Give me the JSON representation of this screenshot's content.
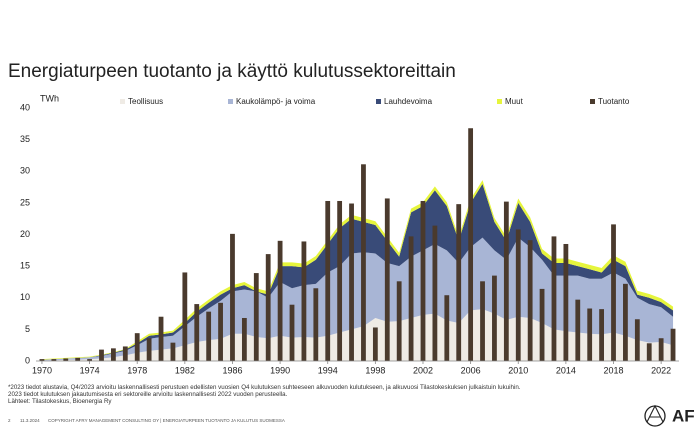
{
  "chart_data": {
    "type": "area",
    "title": "Energiaturpeen tuotanto ja käyttö kulutussektoreittain",
    "ylabel": "TWh",
    "x": [
      1970,
      1971,
      1972,
      1973,
      1974,
      1975,
      1976,
      1977,
      1978,
      1979,
      1980,
      1981,
      1982,
      1983,
      1984,
      1985,
      1986,
      1987,
      1988,
      1989,
      1990,
      1991,
      1992,
      1993,
      1994,
      1995,
      1996,
      1997,
      1998,
      1999,
      2000,
      2001,
      2002,
      2003,
      2004,
      2005,
      2006,
      2007,
      2008,
      2009,
      2010,
      2011,
      2012,
      2013,
      2014,
      2015,
      2016,
      2017,
      2018,
      2019,
      2020,
      2021,
      2022,
      2023
    ],
    "xlim": [
      1969.5,
      2023.5
    ],
    "xticks": [
      1970,
      1974,
      1978,
      1982,
      1986,
      1990,
      1994,
      1998,
      2002,
      2006,
      2010,
      2014,
      2018,
      2022
    ],
    "ylim": [
      0,
      40
    ],
    "yticks": [
      0,
      5,
      10,
      15,
      20,
      25,
      30,
      35,
      40
    ],
    "series": [
      {
        "name": "Teollisuus",
        "color": "#efebe5",
        "type": "area",
        "values": [
          0.1,
          0.1,
          0.2,
          0.2,
          0.3,
          0.4,
          0.6,
          0.9,
          1.3,
          1.6,
          1.8,
          2.0,
          2.5,
          3.0,
          3.3,
          3.5,
          4.3,
          4.3,
          3.8,
          3.6,
          4.0,
          3.7,
          3.8,
          3.7,
          4.0,
          4.5,
          5.0,
          5.5,
          6.8,
          6.2,
          6.3,
          6.8,
          7.3,
          7.5,
          6.4,
          6.0,
          8.0,
          8.2,
          7.5,
          6.5,
          7.0,
          6.8,
          6.0,
          5.0,
          4.7,
          4.5,
          4.3,
          4.2,
          4.5,
          4.0,
          3.3,
          2.9,
          3.0,
          2.5
        ]
      },
      {
        "name": "Kaukolämpö- ja voima",
        "color": "#a8b5d5",
        "type": "area",
        "values": [
          0.1,
          0.2,
          0.2,
          0.3,
          0.3,
          0.4,
          0.6,
          0.7,
          1.2,
          1.9,
          2.0,
          2.0,
          3.0,
          4.0,
          5.0,
          6.0,
          6.7,
          7.0,
          7.2,
          6.4,
          8.5,
          7.8,
          8.2,
          8.5,
          10.0,
          10.5,
          12.0,
          11.7,
          10.2,
          9.3,
          8.7,
          9.7,
          10.2,
          11.0,
          11.1,
          9.5,
          10.0,
          11.3,
          10.0,
          9.5,
          12.5,
          11.2,
          10.0,
          8.5,
          8.8,
          9.0,
          8.7,
          8.8,
          9.5,
          9.0,
          6.7,
          6.1,
          5.5,
          4.5
        ]
      },
      {
        "name": "Lauhdevoima",
        "color": "#394b78",
        "type": "area",
        "values": [
          0,
          0,
          0,
          0,
          0,
          0.1,
          0.1,
          0.2,
          0.3,
          0.5,
          0.4,
          0.5,
          0.5,
          0.8,
          0.9,
          1.0,
          0.5,
          0.7,
          0,
          0.5,
          2.5,
          3.5,
          2.8,
          3.8,
          4.5,
          6.0,
          5.5,
          4.8,
          4.5,
          3.5,
          1.5,
          7.0,
          7.0,
          8.5,
          7.0,
          3.5,
          7.0,
          8.5,
          4.5,
          3.0,
          5.5,
          4.0,
          1.0,
          2.0,
          2.0,
          1.5,
          1.5,
          1.0,
          2.0,
          2.0,
          0.5,
          1.0,
          0.8,
          1.0
        ]
      },
      {
        "name": "Muut",
        "color": "#e6f53c",
        "type": "area",
        "values": [
          0.1,
          0.1,
          0.1,
          0.1,
          0.1,
          0.1,
          0.1,
          0.1,
          0.3,
          0.3,
          0.3,
          0.3,
          0.5,
          0.5,
          0.5,
          0.5,
          0.5,
          0.5,
          0.5,
          0.5,
          0.6,
          0.6,
          0.6,
          0.6,
          0.6,
          0.6,
          0.6,
          0.6,
          0.6,
          0.6,
          0.6,
          0.6,
          0.6,
          0.6,
          0.6,
          0.6,
          0.6,
          0.6,
          0.6,
          0.6,
          0.7,
          0.7,
          0.7,
          0.7,
          0.7,
          0.7,
          0.7,
          0.7,
          0.7,
          0.7,
          0.6,
          0.6,
          0.6,
          0.6
        ]
      },
      {
        "name": "Tuotanto",
        "color": "#4a3a2d",
        "type": "bar",
        "values": [
          0.3,
          0.3,
          0.4,
          0.5,
          0.3,
          1.8,
          2.0,
          2.3,
          4.4,
          3.6,
          7.0,
          2.9,
          14.0,
          9.0,
          7.8,
          9.2,
          20.1,
          6.8,
          13.9,
          16.9,
          19.0,
          8.9,
          18.9,
          11.5,
          25.3,
          25.3,
          24.9,
          31.1,
          5.3,
          25.7,
          12.6,
          19.7,
          25.3,
          21.4,
          10.4,
          24.8,
          36.8,
          12.6,
          13.5,
          25.2,
          20.8,
          19.1,
          11.4,
          19.7,
          18.5,
          9.7,
          8.3,
          8.2,
          21.6,
          12.2,
          6.6,
          2.8,
          3.6,
          5.1
        ]
      }
    ],
    "notes": [
      "*2023 tiedot alustavia, Q4/2023 arvioitu laskennallisesti perustuen edellisten vuosien Q4 kulutuksen suhteeseen alkuvuoden kulutukseen, ja alkuvuosi Tilastokeskuksen julkaistuin lukuihin.",
      "2023 tiedot kulutuksen jakautumisesta eri sektoreille arvioitu laskennallisesti 2022 vuoden perusteella.",
      "Lähteet: Tilastokeskus, Bioenergia Ry"
    ],
    "footer": {
      "page": "2",
      "date": "11.3.2024",
      "text": "COPYRIGHT AFRY MANAGEMENT CONSULTING OY | ENERGIATURPEEN TUOTANTO JA KULUTUS SUOMESSA",
      "logo": "AF"
    }
  }
}
